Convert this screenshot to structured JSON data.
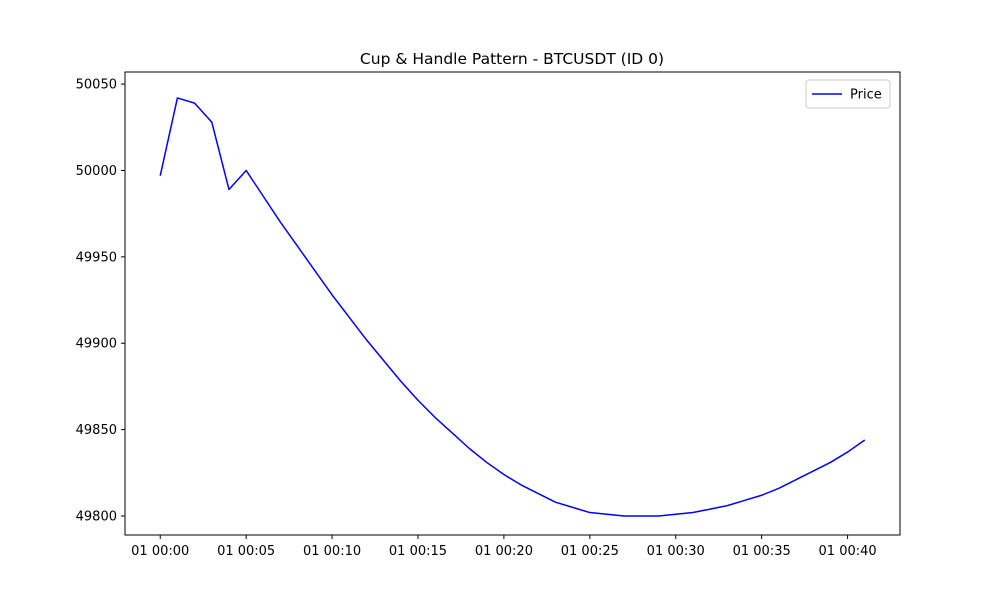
{
  "chart_data": {
    "type": "line",
    "title": "Cup & Handle Pattern - BTCUSDT (ID 0)",
    "xlabel": "",
    "ylabel": "",
    "x_format": "DD HH:MM",
    "x_ticks": [
      "01 00:00",
      "01 00:05",
      "01 00:10",
      "01 00:15",
      "01 00:20",
      "01 00:25",
      "01 00:30",
      "01 00:35",
      "01 00:40"
    ],
    "y_ticks": [
      49800,
      49850,
      49900,
      49950,
      50000,
      50050
    ],
    "ylim": [
      49789,
      50057
    ],
    "xlim": [
      "01 00:00",
      "01 00:41"
    ],
    "grid": false,
    "legend_position": "top-right",
    "colors": {
      "line": "#0000ff",
      "axes": "#000000",
      "background": "#ffffff"
    },
    "series": [
      {
        "name": "Price",
        "x": [
          "01 00:00",
          "01 00:01",
          "01 00:02",
          "01 00:03",
          "01 00:04",
          "01 00:05",
          "01 00:06",
          "01 00:07",
          "01 00:08",
          "01 00:09",
          "01 00:10",
          "01 00:11",
          "01 00:12",
          "01 00:13",
          "01 00:14",
          "01 00:15",
          "01 00:16",
          "01 00:17",
          "01 00:18",
          "01 00:19",
          "01 00:20",
          "01 00:21",
          "01 00:22",
          "01 00:23",
          "01 00:24",
          "01 00:25",
          "01 00:26",
          "01 00:27",
          "01 00:28",
          "01 00:29",
          "01 00:30",
          "01 00:31",
          "01 00:32",
          "01 00:33",
          "01 00:34",
          "01 00:35",
          "01 00:36",
          "01 00:37",
          "01 00:38",
          "01 00:39",
          "01 00:40",
          "01 00:41"
        ],
        "values": [
          49997,
          50042,
          50039,
          50028,
          49989,
          50000,
          49985,
          49970,
          49956,
          49942,
          49928,
          49915,
          49902,
          49890,
          49878,
          49867,
          49857,
          49848,
          49839,
          49831,
          49824,
          49818,
          49813,
          49808,
          49805,
          49802,
          49801,
          49800,
          49800,
          49800,
          49801,
          49802,
          49804,
          49806,
          49809,
          49812,
          49816,
          49821,
          49826,
          49831,
          49837,
          49844
        ]
      }
    ]
  }
}
